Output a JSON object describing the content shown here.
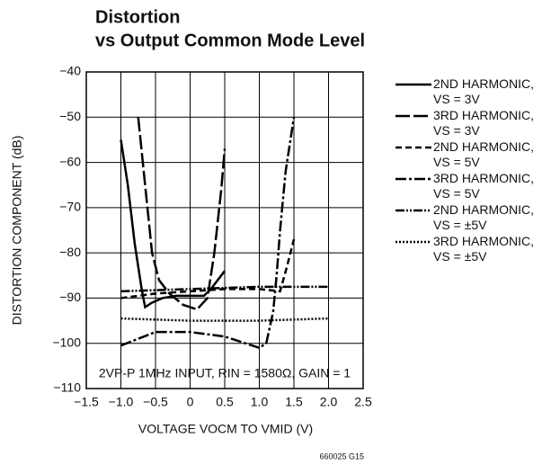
{
  "chart_data": {
    "type": "line",
    "title": "Distortion",
    "subtitle": "vs Output Common Mode Level",
    "x_label": "VOLTAGE VOCM TO VMID (V)",
    "y_label": "DISTORTION COMPONENT (dB)",
    "annotation": "2VP-P 1MHz INPUT, RIN = 1580Ω, GAIN = 1",
    "footnote": "660025 G15",
    "xlim": [
      -1.5,
      2.5
    ],
    "ylim": [
      -110,
      -40
    ],
    "xticks": [
      {
        "value": -1.5,
        "label": "−1.5"
      },
      {
        "value": -1.0,
        "label": "−1.0"
      },
      {
        "value": -0.5,
        "label": "−0.5"
      },
      0,
      0.5,
      {
        "value": 1.0,
        "label": "1.0"
      },
      1.5,
      {
        "value": 2.0,
        "label": "2.0"
      },
      2.5
    ],
    "yticks": [
      {
        "value": -110,
        "label": "−110"
      },
      {
        "value": -100,
        "label": "−100"
      },
      {
        "value": -90,
        "label": "−90"
      },
      {
        "value": -80,
        "label": "−80"
      },
      {
        "value": -70,
        "label": "−70"
      },
      {
        "value": -60,
        "label": "−60"
      },
      {
        "value": -50,
        "label": "−50"
      },
      {
        "value": -40,
        "label": "−40"
      }
    ],
    "grid": true,
    "legend": "right",
    "series": [
      {
        "name": "2ND HARMONIC, VS = 3V",
        "color": "#000000",
        "linestyle": "solid",
        "x": [
          -1.0,
          -0.9,
          -0.8,
          -0.7,
          -0.65,
          -0.55,
          -0.4,
          -0.2,
          0,
          0.2,
          0.3,
          0.4,
          0.5
        ],
        "values": [
          -55,
          -65,
          -78,
          -88,
          -92,
          -91,
          -90,
          -89.5,
          -89.5,
          -89.5,
          -88,
          -86,
          -84
        ]
      },
      {
        "name": "3RD HARMONIC, VS = 3V",
        "color": "#000000",
        "linestyle": "long-dash",
        "x": [
          -0.75,
          -0.65,
          -0.55,
          -0.45,
          -0.3,
          -0.1,
          0.1,
          0.25,
          0.35,
          0.45,
          0.5
        ],
        "values": [
          -50,
          -65,
          -80,
          -86,
          -89,
          -91.5,
          -92.5,
          -90,
          -80,
          -66,
          -57
        ]
      },
      {
        "name": "2ND HARMONIC, VS = 5V",
        "color": "#000000",
        "linestyle": "dash",
        "x": [
          -1.0,
          -0.5,
          0,
          0.5,
          1.0,
          1.3,
          1.4,
          1.5
        ],
        "values": [
          -90,
          -89,
          -88.5,
          -88,
          -88,
          -88.5,
          -83,
          -77
        ]
      },
      {
        "name": "3RD HARMONIC, VS = 5V",
        "color": "#000000",
        "linestyle": "dash-dot",
        "x": [
          -1.0,
          -0.5,
          0,
          0.5,
          1.0,
          1.1,
          1.2,
          1.25,
          1.3,
          1.38,
          1.45,
          1.5
        ],
        "values": [
          -100.5,
          -97.5,
          -97.5,
          -98.5,
          -101,
          -100,
          -93,
          -85,
          -75,
          -62,
          -55,
          -50
        ]
      },
      {
        "name": "2ND HARMONIC, VS = ±5V",
        "color": "#000000",
        "linestyle": "dash-dot-dot",
        "x": [
          -1.0,
          0,
          1.0,
          2.0
        ],
        "values": [
          -88.5,
          -88,
          -87.5,
          -87.5
        ]
      },
      {
        "name": "3RD HARMONIC, VS = ±5V",
        "color": "#000000",
        "linestyle": "dotted",
        "x": [
          -1.0,
          0,
          1.0,
          2.0
        ],
        "values": [
          -94.5,
          -95,
          -95,
          -94.5
        ]
      }
    ]
  }
}
